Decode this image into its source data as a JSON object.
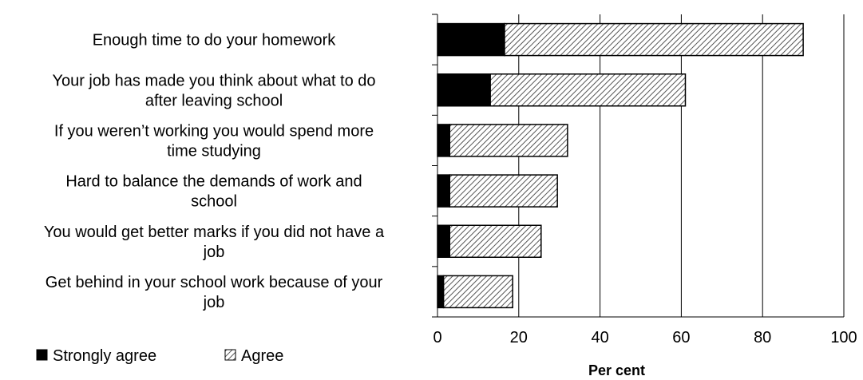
{
  "chart_data": {
    "type": "bar",
    "orientation": "horizontal",
    "stacked": true,
    "categories": [
      "Enough time to do your homework",
      "Your job has made you think about what to do after leaving school",
      "If you weren’t working you would spend more time studying",
      "Hard to balance the demands of work and school",
      "You would get better marks if you did not have a job",
      "Get behind in your school work because of your job"
    ],
    "category_lines": [
      [
        "Enough time to do your homework"
      ],
      [
        "Your job has made you think about what to do",
        "after leaving school"
      ],
      [
        "If you weren’t working you would spend more",
        "time studying"
      ],
      [
        "Hard to balance the demands of work and",
        "school"
      ],
      [
        "You would get better marks if you did not have a",
        "job"
      ],
      [
        "Get behind in your school work because of your",
        "job"
      ]
    ],
    "series": [
      {
        "name": "Strongly agree",
        "color": "#000000",
        "pattern": "solid",
        "values": [
          16.5,
          13,
          3,
          3,
          3,
          1.5
        ]
      },
      {
        "name": "Agree",
        "color": "#bfbfbf",
        "pattern": "diagonal-hatch",
        "values": [
          73.5,
          48,
          29,
          26.5,
          22.5,
          17
        ]
      }
    ],
    "xlim": [
      0,
      100
    ],
    "xticks": [
      0,
      20,
      40,
      60,
      80,
      100
    ],
    "xtick_labels": [
      "0",
      "20",
      "40",
      "60",
      "80",
      "100"
    ],
    "xlabel": "Per cent",
    "ylabel": "",
    "title": "",
    "grid": "vertical",
    "legend": "bottom-left"
  }
}
